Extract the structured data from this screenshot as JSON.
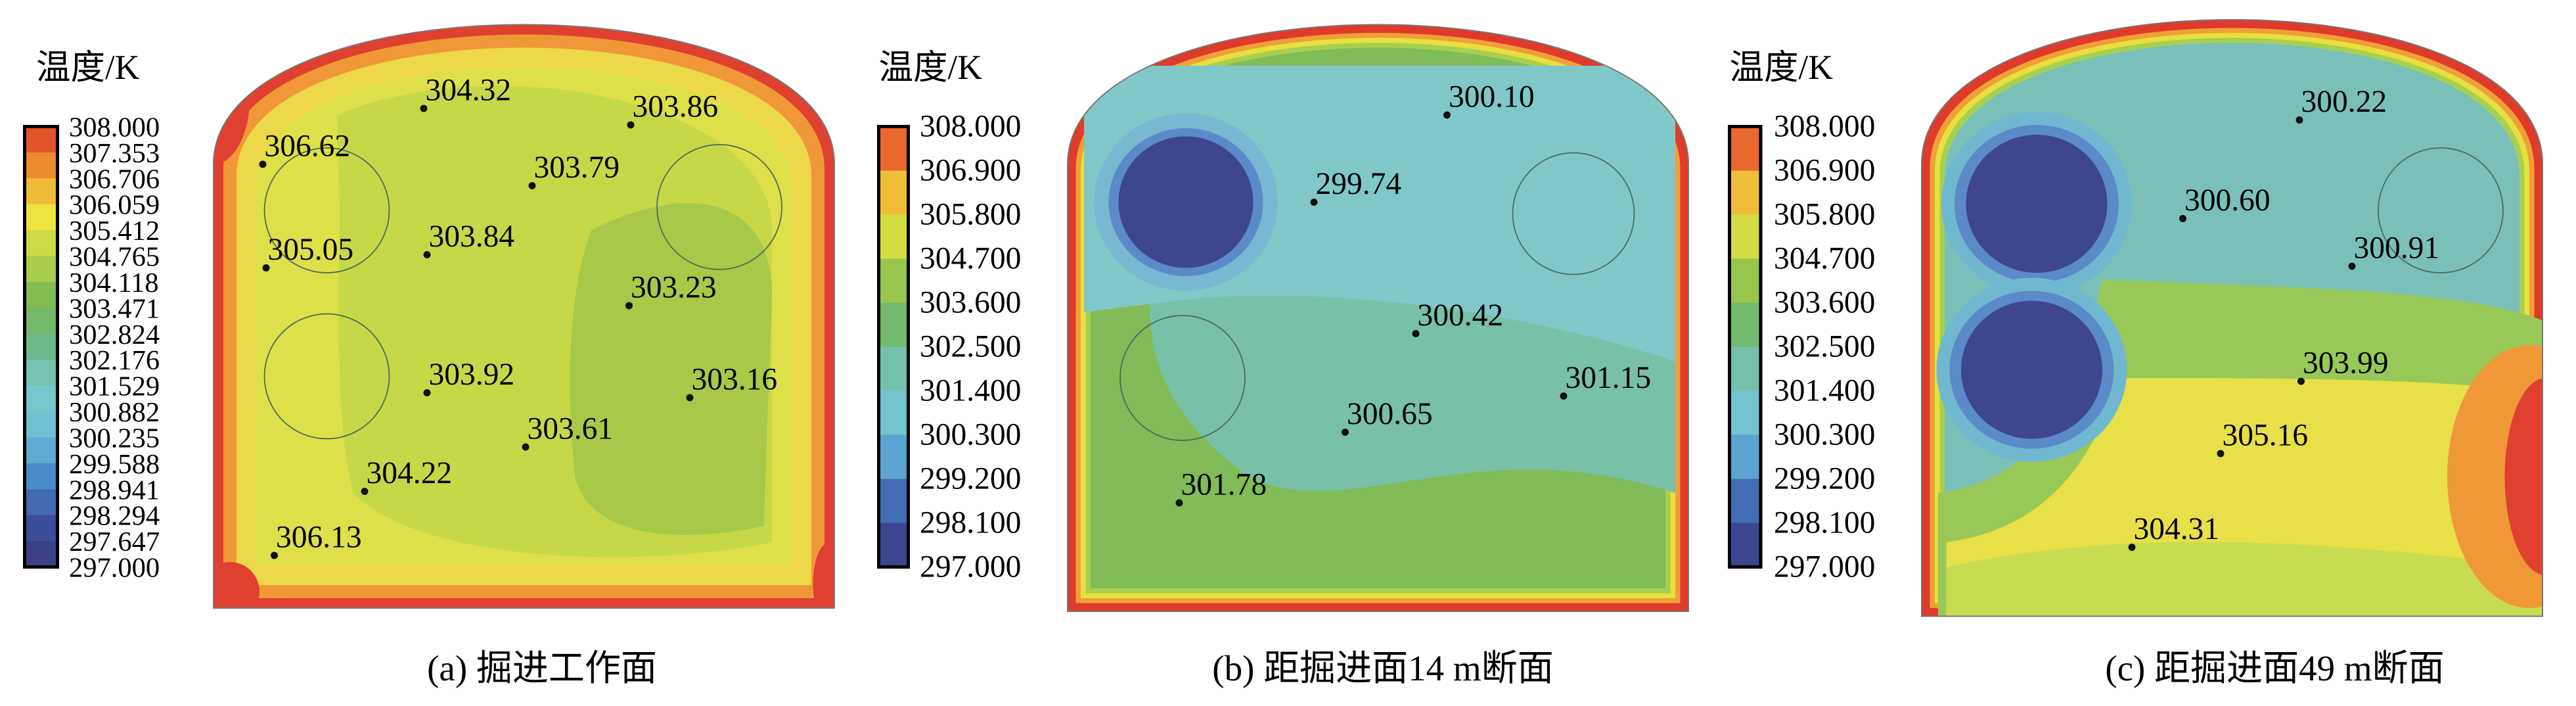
{
  "panels": [
    {
      "legend_title": "温度/K",
      "legend_labels": [
        "308.000",
        "307.353",
        "306.706",
        "306.059",
        "305.412",
        "304.765",
        "304.118",
        "303.471",
        "302.824",
        "302.176",
        "301.529",
        "300.882",
        "300.235",
        "299.588",
        "298.941",
        "298.294",
        "297.647",
        "297.000"
      ],
      "points": [
        "304.32",
        "303.86",
        "306.62",
        "303.79",
        "305.05",
        "303.84",
        "303.23",
        "303.92",
        "303.16",
        "303.61",
        "304.22",
        "306.13"
      ],
      "caption": "(a) 掘进工作面"
    },
    {
      "legend_title": "温度/K",
      "legend_labels": [
        "308.000",
        "306.900",
        "305.800",
        "304.700",
        "303.600",
        "302.500",
        "301.400",
        "300.300",
        "299.200",
        "298.100",
        "297.000"
      ],
      "points": [
        "300.10",
        "299.74",
        "300.42",
        "301.15",
        "300.65",
        "301.78"
      ],
      "caption": "(b) 距掘进面14 m断面"
    },
    {
      "legend_title": "温度/K",
      "legend_labels": [
        "308.000",
        "306.900",
        "305.800",
        "304.700",
        "303.600",
        "302.500",
        "301.400",
        "300.300",
        "299.200",
        "298.100",
        "297.000"
      ],
      "points": [
        "300.22",
        "300.60",
        "300.91",
        "303.99",
        "305.16",
        "304.31"
      ],
      "caption": "(c) 距掘进面49 m断面"
    }
  ]
}
